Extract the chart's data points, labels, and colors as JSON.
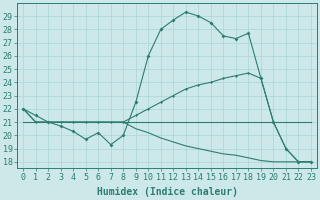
{
  "xlabel": "Humidex (Indice chaleur)",
  "x": [
    0,
    1,
    2,
    3,
    4,
    5,
    6,
    7,
    8,
    9,
    10,
    11,
    12,
    13,
    14,
    15,
    16,
    17,
    18,
    19,
    20,
    21,
    22,
    23
  ],
  "line1_marked": [
    22,
    21.5,
    21,
    20.7,
    20.3,
    19.7,
    20.2,
    19.3,
    20.0,
    22.5,
    26.0,
    28.0,
    28.7,
    29.3,
    29.0,
    28.5,
    27.5,
    27.3,
    27.7,
    24.3,
    21.0,
    19.0,
    18.0,
    18.0
  ],
  "line2_flat": [
    21,
    21,
    21,
    21,
    21,
    21,
    21,
    21,
    21,
    21,
    21,
    21,
    21,
    21,
    21,
    21,
    21,
    21,
    21,
    21,
    21,
    21,
    21,
    21
  ],
  "line3_upper": [
    22,
    21,
    21,
    21,
    21,
    21,
    21,
    21,
    21,
    21.5,
    22.0,
    22.5,
    23.0,
    23.5,
    23.8,
    24.0,
    24.3,
    24.5,
    24.7,
    24.3,
    21.0,
    19.0,
    18.0,
    18.0
  ],
  "line4_lower": [
    22,
    21,
    21,
    21,
    21,
    21,
    21,
    21,
    21,
    20.5,
    20.2,
    19.8,
    19.5,
    19.2,
    19.0,
    18.8,
    18.6,
    18.5,
    18.3,
    18.1,
    18.0,
    18.0,
    18.0,
    18.0
  ],
  "ylim": [
    17.5,
    30
  ],
  "xlim": [
    -0.5,
    23.5
  ],
  "yticks": [
    18,
    19,
    20,
    21,
    22,
    23,
    24,
    25,
    26,
    27,
    28,
    29
  ],
  "xticks": [
    0,
    1,
    2,
    3,
    4,
    5,
    6,
    7,
    8,
    9,
    10,
    11,
    12,
    13,
    14,
    15,
    16,
    17,
    18,
    19,
    20,
    21,
    22,
    23
  ],
  "color": "#2e7d6e",
  "bg_color": "#cce8e8",
  "grid_color": "#b0d8d8",
  "tick_fontsize": 6,
  "label_fontsize": 7
}
